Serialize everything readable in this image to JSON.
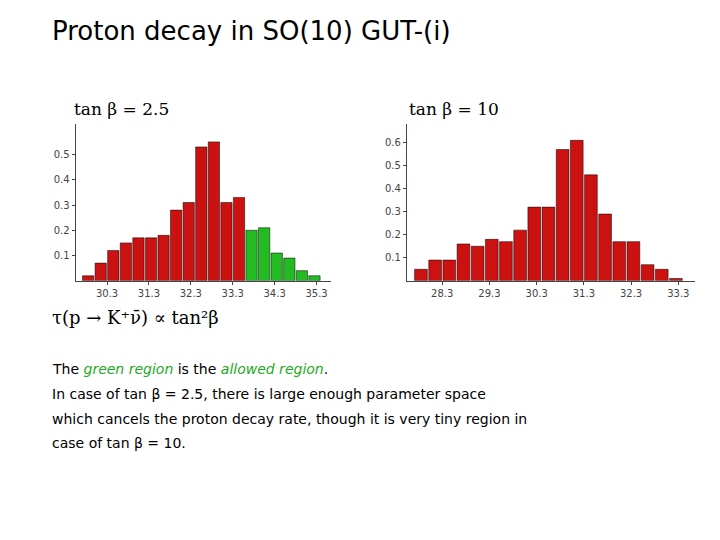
{
  "title": "Proton decay in SO(10) GUT-(i)",
  "formula": "τ(p → K⁺ν̄) ∝ tan²β",
  "annotations": [
    {
      "segments": [
        {
          "text": "The "
        },
        {
          "text": "green region",
          "color": "#22aa22"
        },
        {
          "text": " is the "
        },
        {
          "text": "allowed region",
          "color": "#22aa22"
        },
        {
          "text": "."
        }
      ]
    },
    {
      "text": "In case of tan β = 2.5, there is large enough parameter space"
    },
    {
      "text": "which cancels the proton decay rate, though it is very tiny region in"
    },
    {
      "text": "case of tan β = 10."
    }
  ],
  "chart_data": [
    {
      "type": "bar",
      "title": "tan β = 2.5",
      "x": [
        29.85,
        30.15,
        30.45,
        30.75,
        31.05,
        31.35,
        31.65,
        31.95,
        32.25,
        32.55,
        32.85,
        33.15,
        33.45,
        33.75,
        34.05,
        34.35,
        34.65,
        34.95,
        35.25
      ],
      "values": [
        0.02,
        0.07,
        0.12,
        0.15,
        0.17,
        0.17,
        0.18,
        0.28,
        0.31,
        0.53,
        0.55,
        0.31,
        0.33,
        0.2,
        0.21,
        0.11,
        0.09,
        0.04,
        0.02
      ],
      "colors": [
        "#cc1111",
        "#cc1111",
        "#cc1111",
        "#cc1111",
        "#cc1111",
        "#cc1111",
        "#cc1111",
        "#cc1111",
        "#cc1111",
        "#cc1111",
        "#cc1111",
        "#cc1111",
        "#cc1111",
        "#22bb22",
        "#22bb22",
        "#22bb22",
        "#22bb22",
        "#22bb22",
        "#22bb22"
      ],
      "xlim": [
        29.55,
        35.65
      ],
      "xticks": [
        30.3,
        31.3,
        32.3,
        33.3,
        34.3,
        35.3
      ],
      "ylim": [
        0,
        0.62
      ],
      "yticks": [
        0.1,
        0.2,
        0.3,
        0.4,
        0.5
      ],
      "grid": false
    },
    {
      "type": "bar",
      "title": "tan β = 10",
      "x": [
        27.85,
        28.15,
        28.45,
        28.75,
        29.05,
        29.35,
        29.65,
        29.95,
        30.25,
        30.55,
        30.85,
        31.15,
        31.45,
        31.75,
        32.05,
        32.35,
        32.65,
        32.95,
        33.25
      ],
      "values": [
        0.05,
        0.09,
        0.09,
        0.16,
        0.15,
        0.18,
        0.17,
        0.22,
        0.32,
        0.32,
        0.57,
        0.61,
        0.46,
        0.29,
        0.17,
        0.17,
        0.07,
        0.05,
        0.01
      ],
      "colors": [
        "#cc1111",
        "#cc1111",
        "#cc1111",
        "#cc1111",
        "#cc1111",
        "#cc1111",
        "#cc1111",
        "#cc1111",
        "#cc1111",
        "#cc1111",
        "#cc1111",
        "#cc1111",
        "#cc1111",
        "#cc1111",
        "#cc1111",
        "#cc1111",
        "#cc1111",
        "#cc1111",
        "#cc1111"
      ],
      "xlim": [
        27.55,
        33.65
      ],
      "xticks": [
        28.3,
        29.3,
        30.3,
        31.3,
        32.3,
        33.3
      ],
      "ylim": [
        0,
        0.68
      ],
      "yticks": [
        0.1,
        0.2,
        0.3,
        0.4,
        0.5,
        0.6
      ],
      "grid": false
    }
  ]
}
